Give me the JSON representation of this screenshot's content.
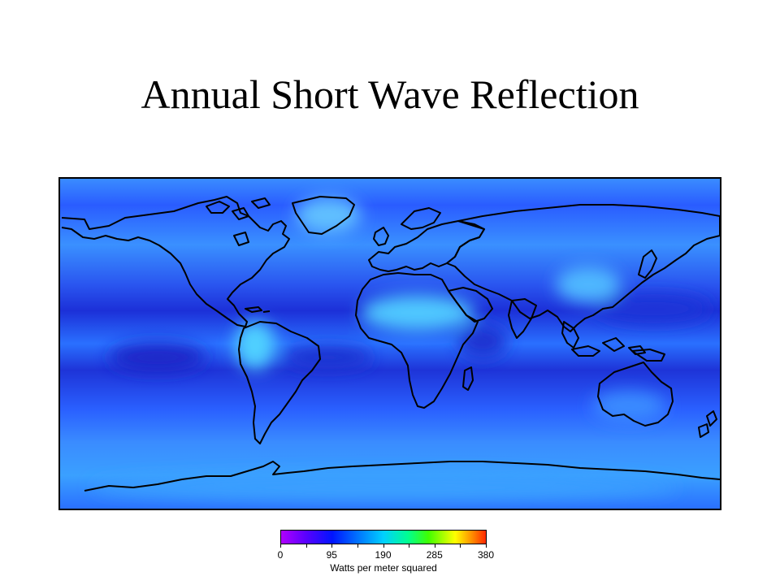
{
  "slide": {
    "title": "Annual Short Wave Reflection"
  },
  "map": {
    "subject": "world map",
    "coastline_color": "#000000",
    "ocean_low_color": "#1a2ad8",
    "mid_color": "#2a6cff",
    "high_color": "#40d8ff"
  },
  "legend": {
    "ticks": [
      "0",
      "95",
      "190",
      "285",
      "380"
    ],
    "tick_values": [
      0,
      95,
      190,
      285,
      380
    ],
    "range": [
      0,
      380
    ],
    "unit": "Watts per meter squared",
    "colors": [
      "#b000ff",
      "#0014ff",
      "#00d0ff",
      "#40ff00",
      "#ffff00",
      "#ff2800"
    ]
  }
}
